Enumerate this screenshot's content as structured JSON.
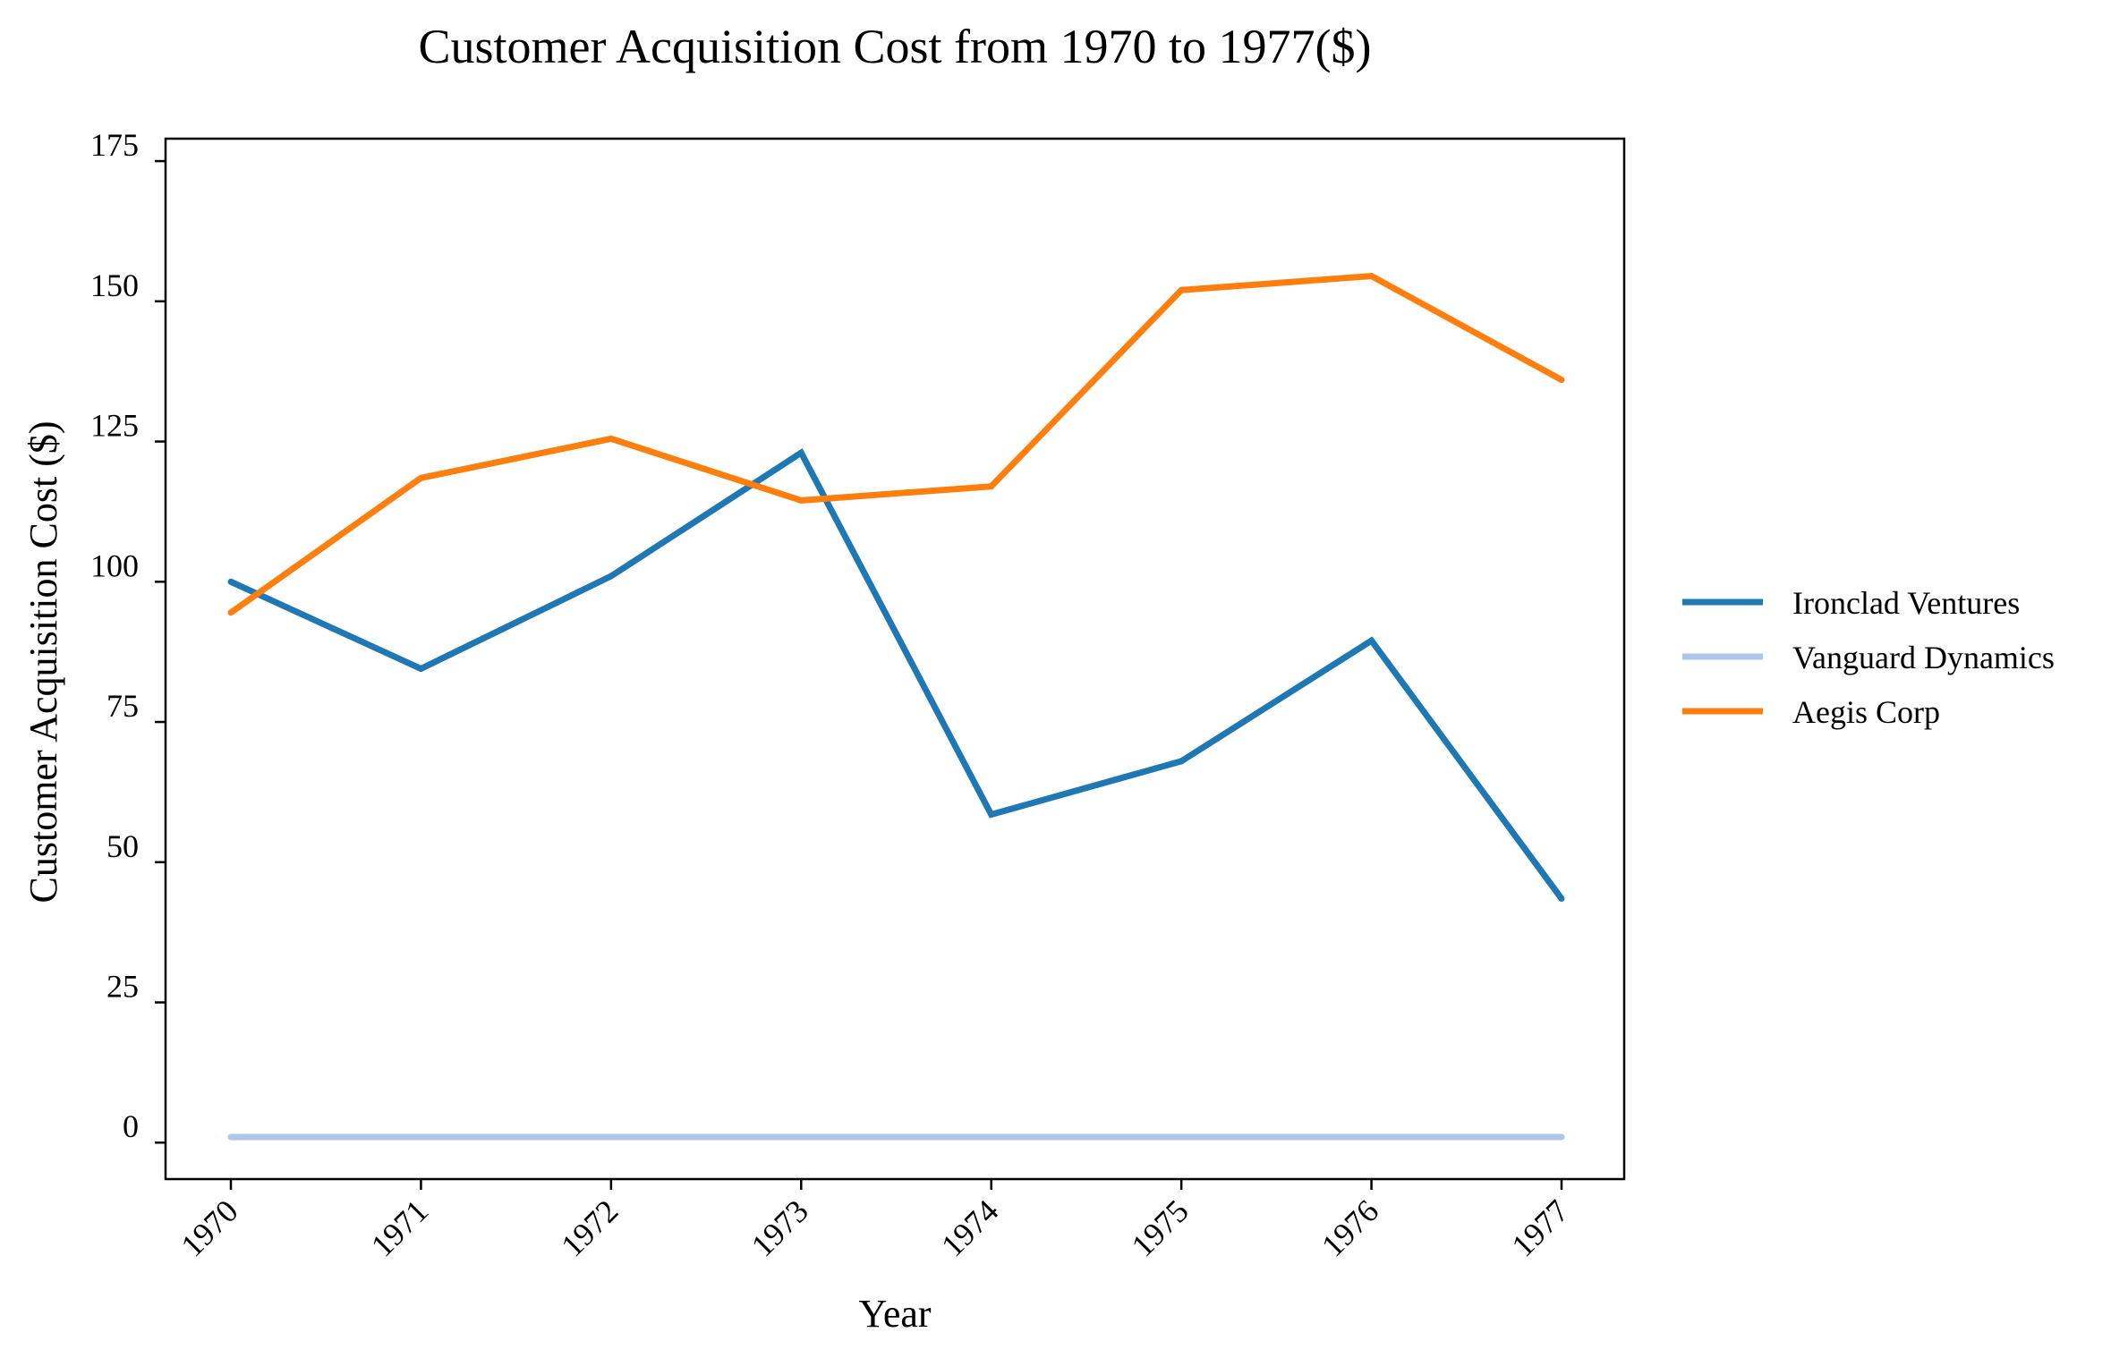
{
  "chart_data": {
    "type": "line",
    "title": "Customer Acquisition Cost from 1970 to 1977($)",
    "xlabel": "Year",
    "ylabel": "Customer Acquisition Cost ($)",
    "categories": [
      "1970",
      "1971",
      "1972",
      "1973",
      "1974",
      "1975",
      "1976",
      "1977"
    ],
    "yticks": [
      0,
      25,
      50,
      75,
      100,
      125,
      150,
      175
    ],
    "ylim": [
      -6.5,
      179
    ],
    "grid": false,
    "legend_position": "right",
    "series": [
      {
        "name": "Ironclad Ventures",
        "color": "#1f77b4",
        "values": [
          100,
          84.5,
          101,
          123,
          58.5,
          68,
          89.5,
          43.5
        ]
      },
      {
        "name": "Vanguard Dynamics",
        "color": "#aec7e8",
        "values": [
          1,
          1,
          1,
          1,
          1,
          1,
          1,
          1
        ]
      },
      {
        "name": "Aegis Corp",
        "color": "#ff7f0e",
        "values": [
          94.5,
          118.5,
          125.5,
          114.5,
          117,
          152,
          154.5,
          136
        ]
      }
    ]
  }
}
